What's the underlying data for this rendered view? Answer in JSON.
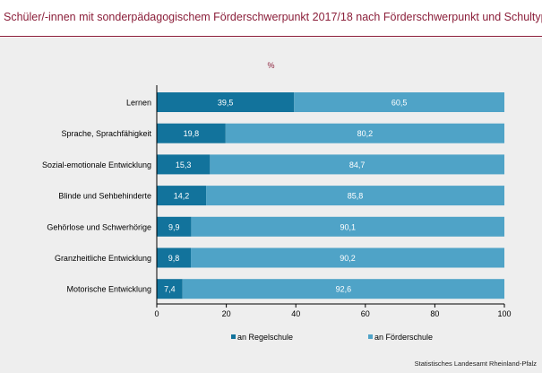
{
  "header": {
    "title": "Schüler/-innen mit sonderpädagogischem Förderschwerpunkt 2017/18 nach Förderschwerpunkt und Schultyp"
  },
  "footer": {
    "source": "Statistisches Landesamt Rheinland-Pfalz"
  },
  "colors": {
    "regelschule": "#12739c",
    "foerderschule": "#4fa3c7",
    "title": "#8b1f3a"
  },
  "chart_data": {
    "type": "bar",
    "orientation": "horizontal",
    "stacked": true,
    "unit_label": "%",
    "categories": [
      "Lernen",
      "Sprache, Sprachfähigkeit",
      "Sozial-emotionale Entwicklung",
      "Blinde und Sehbehinderte",
      "Gehörlose und Schwerhörige",
      "Granzheitliche Entwicklung",
      "Motorische Entwicklung"
    ],
    "series": [
      {
        "name": "an Regelschule",
        "values": [
          39.5,
          19.8,
          15.3,
          14.2,
          9.9,
          9.8,
          7.4
        ]
      },
      {
        "name": "an Förderschule",
        "values": [
          60.5,
          80.2,
          84.7,
          85.8,
          90.1,
          90.2,
          92.6
        ]
      }
    ],
    "xlim": [
      0,
      100
    ],
    "xticks": [
      0,
      20,
      40,
      60,
      80,
      100
    ],
    "grid": false,
    "legend_position": "bottom"
  }
}
